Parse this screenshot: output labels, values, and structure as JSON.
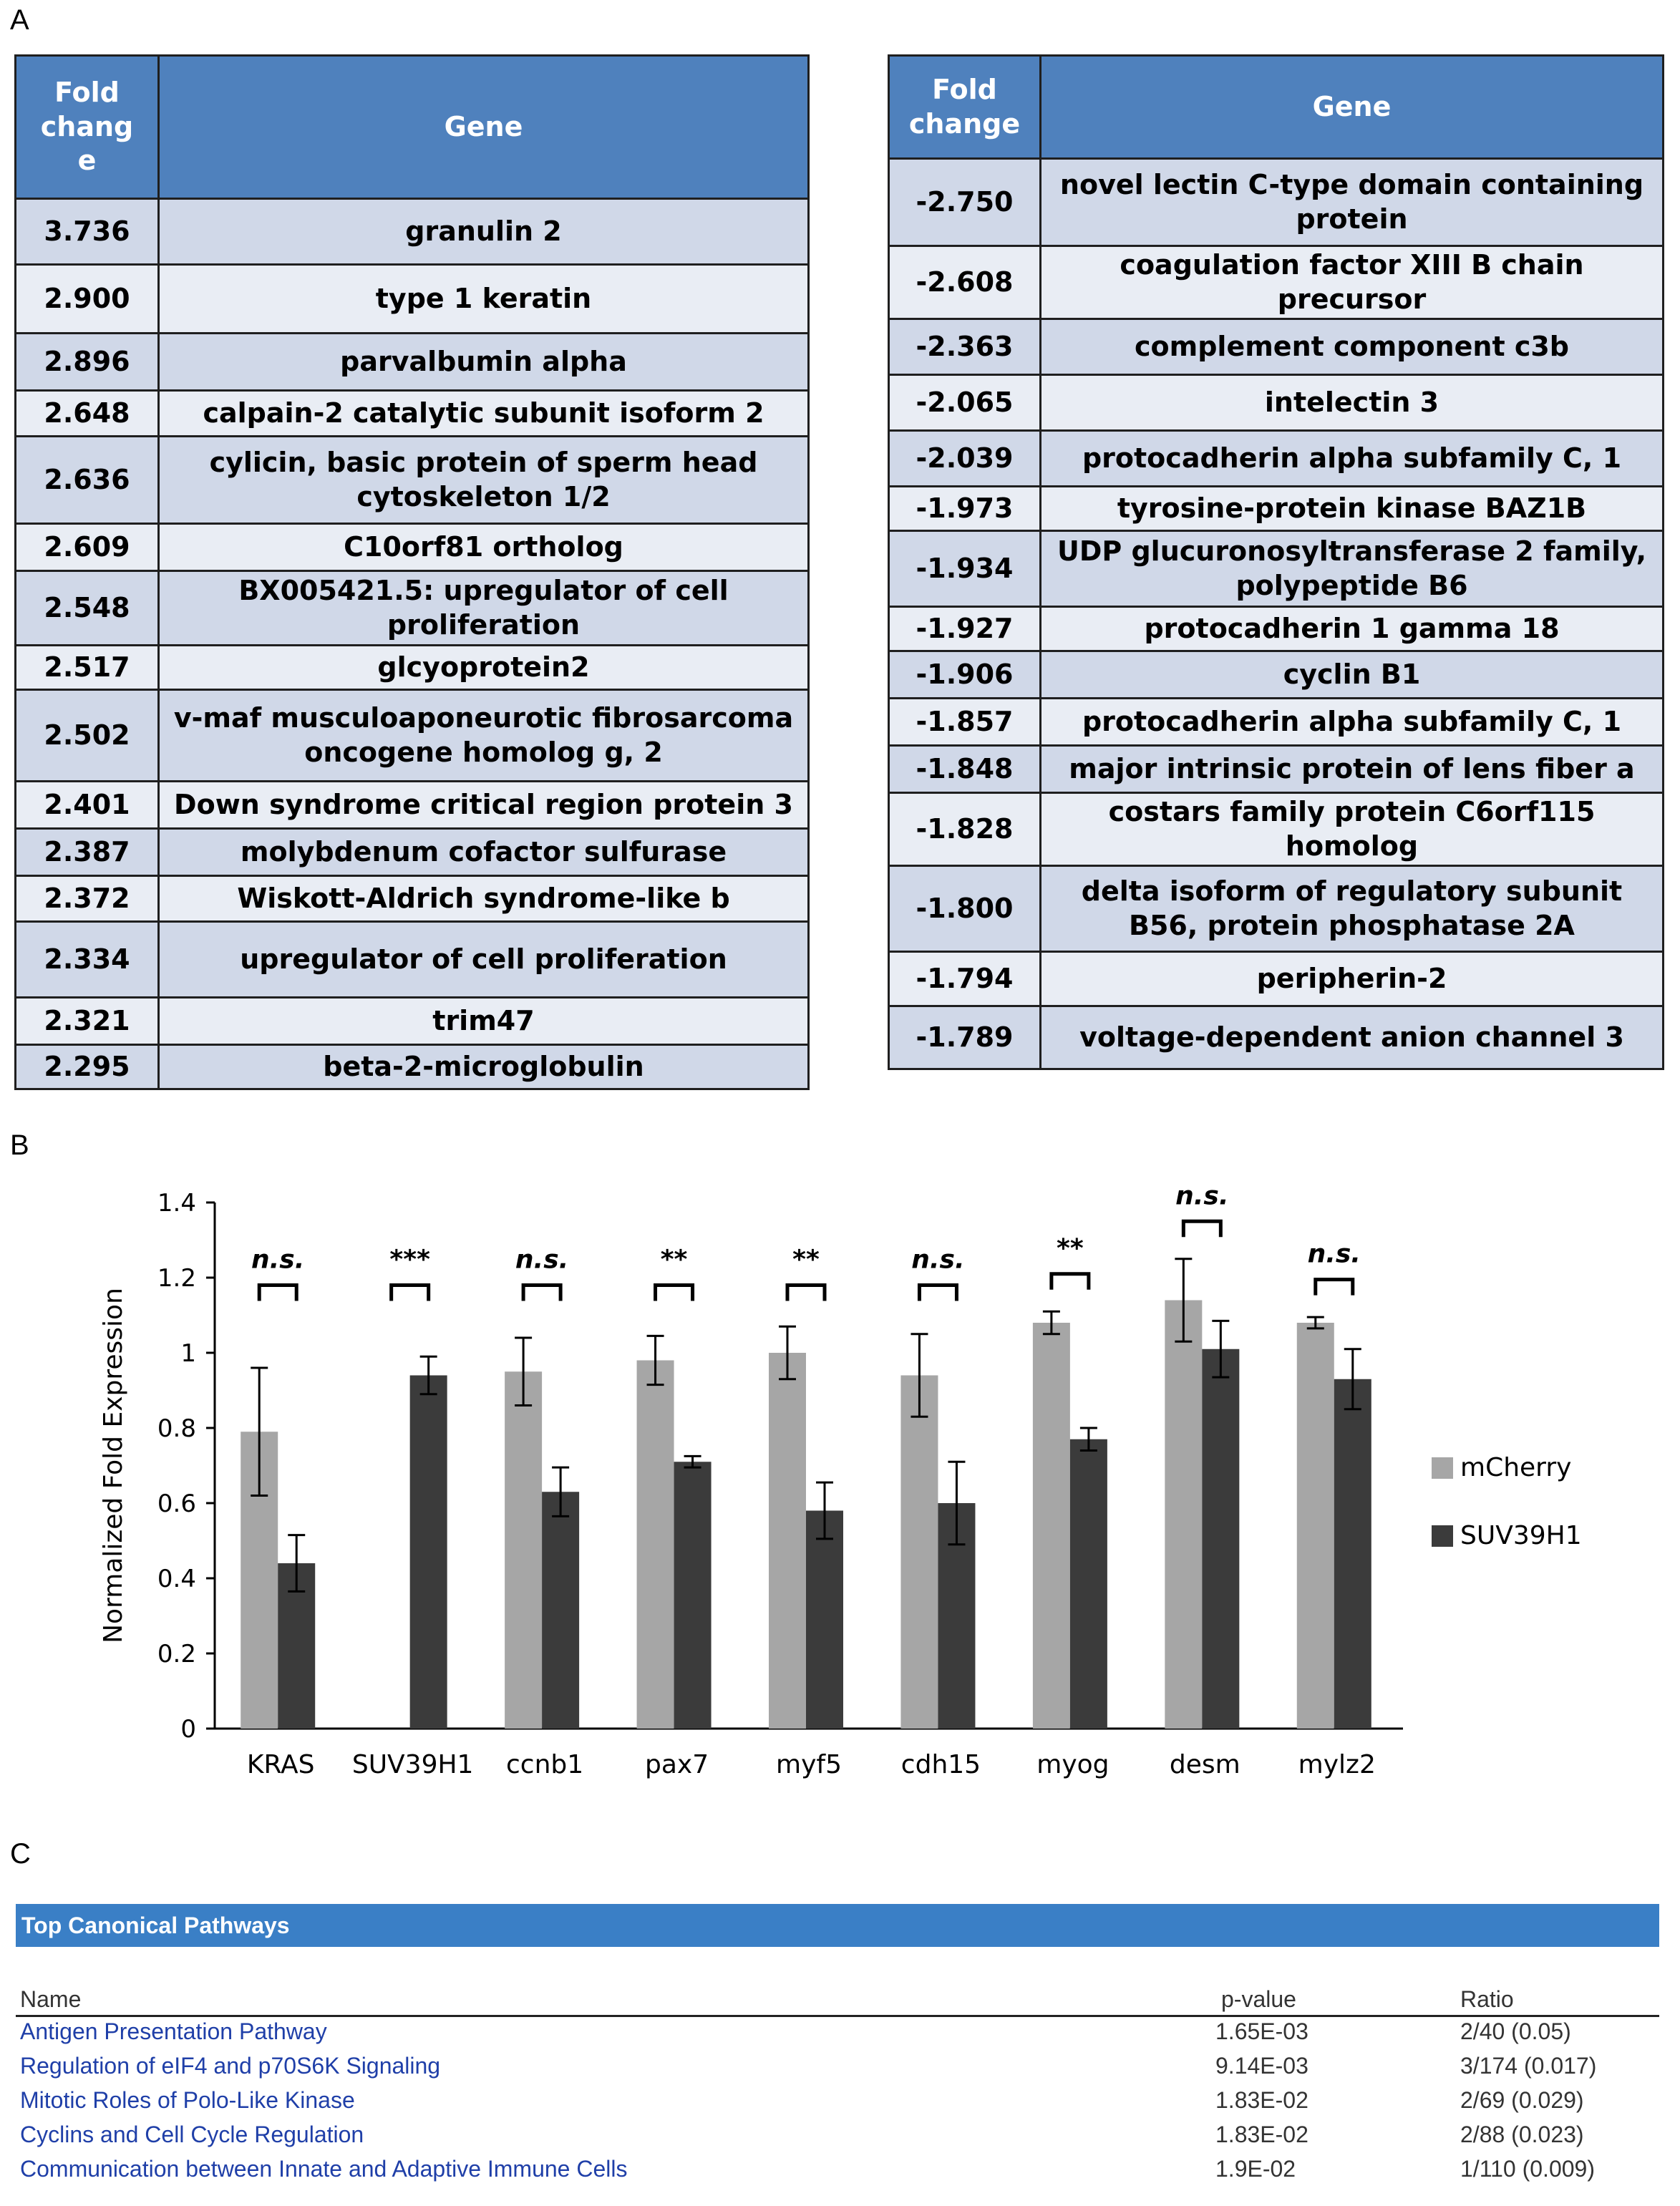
{
  "panels": {
    "a": "A",
    "b": "B",
    "c": "C"
  },
  "table_up": {
    "headers": [
      "Fold\nchang\ne",
      "Gene"
    ],
    "rows": [
      [
        "3.736",
        "granulin 2"
      ],
      [
        "2.900",
        "type 1 keratin"
      ],
      [
        "2.896",
        "parvalbumin alpha"
      ],
      [
        "2.648",
        "calpain-2 catalytic subunit isoform 2"
      ],
      [
        "2.636",
        "cylicin, basic protein of sperm head cytoskeleton 1/2"
      ],
      [
        "2.609",
        "C10orf81 ortholog"
      ],
      [
        "2.548",
        "BX005421.5:  upregulator of cell proliferation"
      ],
      [
        "2.517",
        "glcyoprotein2"
      ],
      [
        "2.502",
        "v-maf musculoaponeurotic fibrosarcoma oncogene homolog g, 2"
      ],
      [
        "2.401",
        "Down syndrome critical region protein 3"
      ],
      [
        "2.387",
        "molybdenum cofactor sulfurase"
      ],
      [
        "2.372",
        "Wiskott-Aldrich syndrome-like b"
      ],
      [
        "2.334",
        "upregulator of cell proliferation"
      ],
      [
        "2.321",
        "trim47"
      ],
      [
        "2.295",
        "beta-2-microglobulin"
      ]
    ]
  },
  "table_down": {
    "headers": [
      "Fold\nchange",
      "Gene"
    ],
    "rows": [
      [
        "-2.750",
        "novel lectin C-type domain containing protein"
      ],
      [
        "-2.608",
        "coagulation factor XIII B chain precursor"
      ],
      [
        "-2.363",
        "complement component c3b"
      ],
      [
        "-2.065",
        "intelectin 3"
      ],
      [
        "-2.039",
        "protocadherin alpha subfamily C, 1"
      ],
      [
        "-1.973",
        "tyrosine-protein kinase BAZ1B"
      ],
      [
        "-1.934",
        "UDP glucuronosyltransferase 2 family, polypeptide B6"
      ],
      [
        "-1.927",
        "protocadherin 1 gamma  18"
      ],
      [
        "-1.906",
        "cyclin B1"
      ],
      [
        "-1.857",
        "protocadherin alpha subfamily C, 1"
      ],
      [
        "-1.848",
        "major intrinsic protein of lens fiber a"
      ],
      [
        "-1.828",
        "costars family protein C6orf115  homolog"
      ],
      [
        "-1.800",
        "delta isoform of regulatory subunit B56, protein phosphatase 2A"
      ],
      [
        "-1.794",
        "peripherin-2"
      ],
      [
        "-1.789",
        "voltage-dependent anion channel 3"
      ]
    ]
  },
  "chart_data": {
    "type": "bar",
    "ylabel": "Normalized Fold Expression",
    "ylim": [
      0,
      1.4
    ],
    "yticks": [
      "0",
      "0.2",
      "0.4",
      "0.6",
      "0.8",
      "1",
      "1.2",
      "1.4"
    ],
    "categories": [
      "KRAS",
      "SUV39H1",
      "ccnb1",
      "pax7",
      "myf5",
      "cdh15",
      "myog",
      "desm",
      "mylz2"
    ],
    "series": [
      {
        "name": "mCherry",
        "color": "#a6a6a6",
        "values": [
          0.79,
          0.0,
          0.95,
          0.98,
          1.0,
          0.94,
          1.08,
          1.14,
          1.08
        ],
        "errors": [
          0.17,
          0.0,
          0.09,
          0.065,
          0.07,
          0.11,
          0.03,
          0.11,
          0.015
        ]
      },
      {
        "name": "SUV39H1",
        "color": "#3b3b3b",
        "values": [
          0.44,
          0.94,
          0.63,
          0.71,
          0.58,
          0.6,
          0.77,
          1.01,
          0.93
        ],
        "errors": [
          0.075,
          0.05,
          0.065,
          0.015,
          0.075,
          0.11,
          0.03,
          0.075,
          0.08
        ]
      }
    ],
    "significance": [
      "n.s.",
      "***",
      "n.s.",
      "**",
      "**",
      "n.s.",
      "**",
      "n.s.",
      "n.s."
    ],
    "legend_position": "right"
  },
  "pathways": {
    "title": "Top Canonical Pathways",
    "headers": {
      "name": "Name",
      "pvalue": "p-value",
      "ratio": "Ratio"
    },
    "rows": [
      {
        "name": "Antigen Presentation Pathway",
        "pvalue": "1.65E-03",
        "ratio": "2/40 (0.05)"
      },
      {
        "name": "Regulation of eIF4 and p70S6K Signaling",
        "pvalue": "9.14E-03",
        "ratio": "3/174 (0.017)"
      },
      {
        "name": "Mitotic Roles of Polo-Like Kinase",
        "pvalue": "1.83E-02",
        "ratio": "2/69 (0.029)"
      },
      {
        "name": "Cyclins and Cell Cycle Regulation",
        "pvalue": "1.83E-02",
        "ratio": "2/88 (0.023)"
      },
      {
        "name": "Communication between Innate and Adaptive Immune Cells",
        "pvalue": "1.9E-02",
        "ratio": "1/110 (0.009)"
      }
    ]
  }
}
